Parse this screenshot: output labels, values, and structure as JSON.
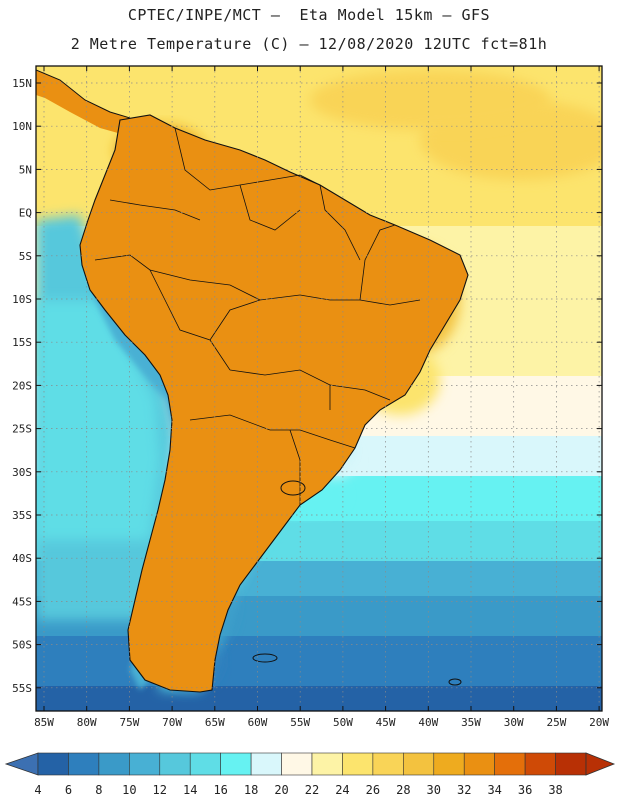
{
  "header": {
    "line1": "CPTEC/INPE/MCT –  Eta Model 15km – GFS",
    "line2": "2 Metre Temperature (C) – 12/08/2020 12UTC fct=81h"
  },
  "axes": {
    "latitude_labels": [
      "15N",
      "10N",
      "5N",
      "EQ",
      "5S",
      "10S",
      "15S",
      "20S",
      "25S",
      "30S",
      "35S",
      "40S",
      "45S",
      "50S",
      "55S"
    ],
    "longitude_labels": [
      "85W",
      "80W",
      "75W",
      "70W",
      "65W",
      "60W",
      "55W",
      "50W",
      "45W",
      "40W",
      "35W",
      "30W",
      "25W",
      "20W"
    ]
  },
  "colorbar": {
    "labels": [
      "4",
      "6",
      "8",
      "10",
      "12",
      "14",
      "16",
      "18",
      "20",
      "22",
      "24",
      "26",
      "28",
      "30",
      "32",
      "34",
      "36",
      "38"
    ],
    "colors": [
      "#2462a6",
      "#2e7fbd",
      "#3a9ac8",
      "#48b0d4",
      "#56c8dc",
      "#5fdde6",
      "#66f2f2",
      "#d9f7fb",
      "#fff8e6",
      "#fdf3a6",
      "#fce46d",
      "#f9d457",
      "#f3c23f",
      "#eeab1f",
      "#ea9012",
      "#e46f0a",
      "#cf4a06",
      "#b83005"
    ],
    "low_color": "#3c70b2",
    "high_color": "#b83005"
  },
  "map": {
    "lon_range": [
      -85,
      -20
    ],
    "lat_range": [
      -57,
      17
    ],
    "gridlines": true
  }
}
